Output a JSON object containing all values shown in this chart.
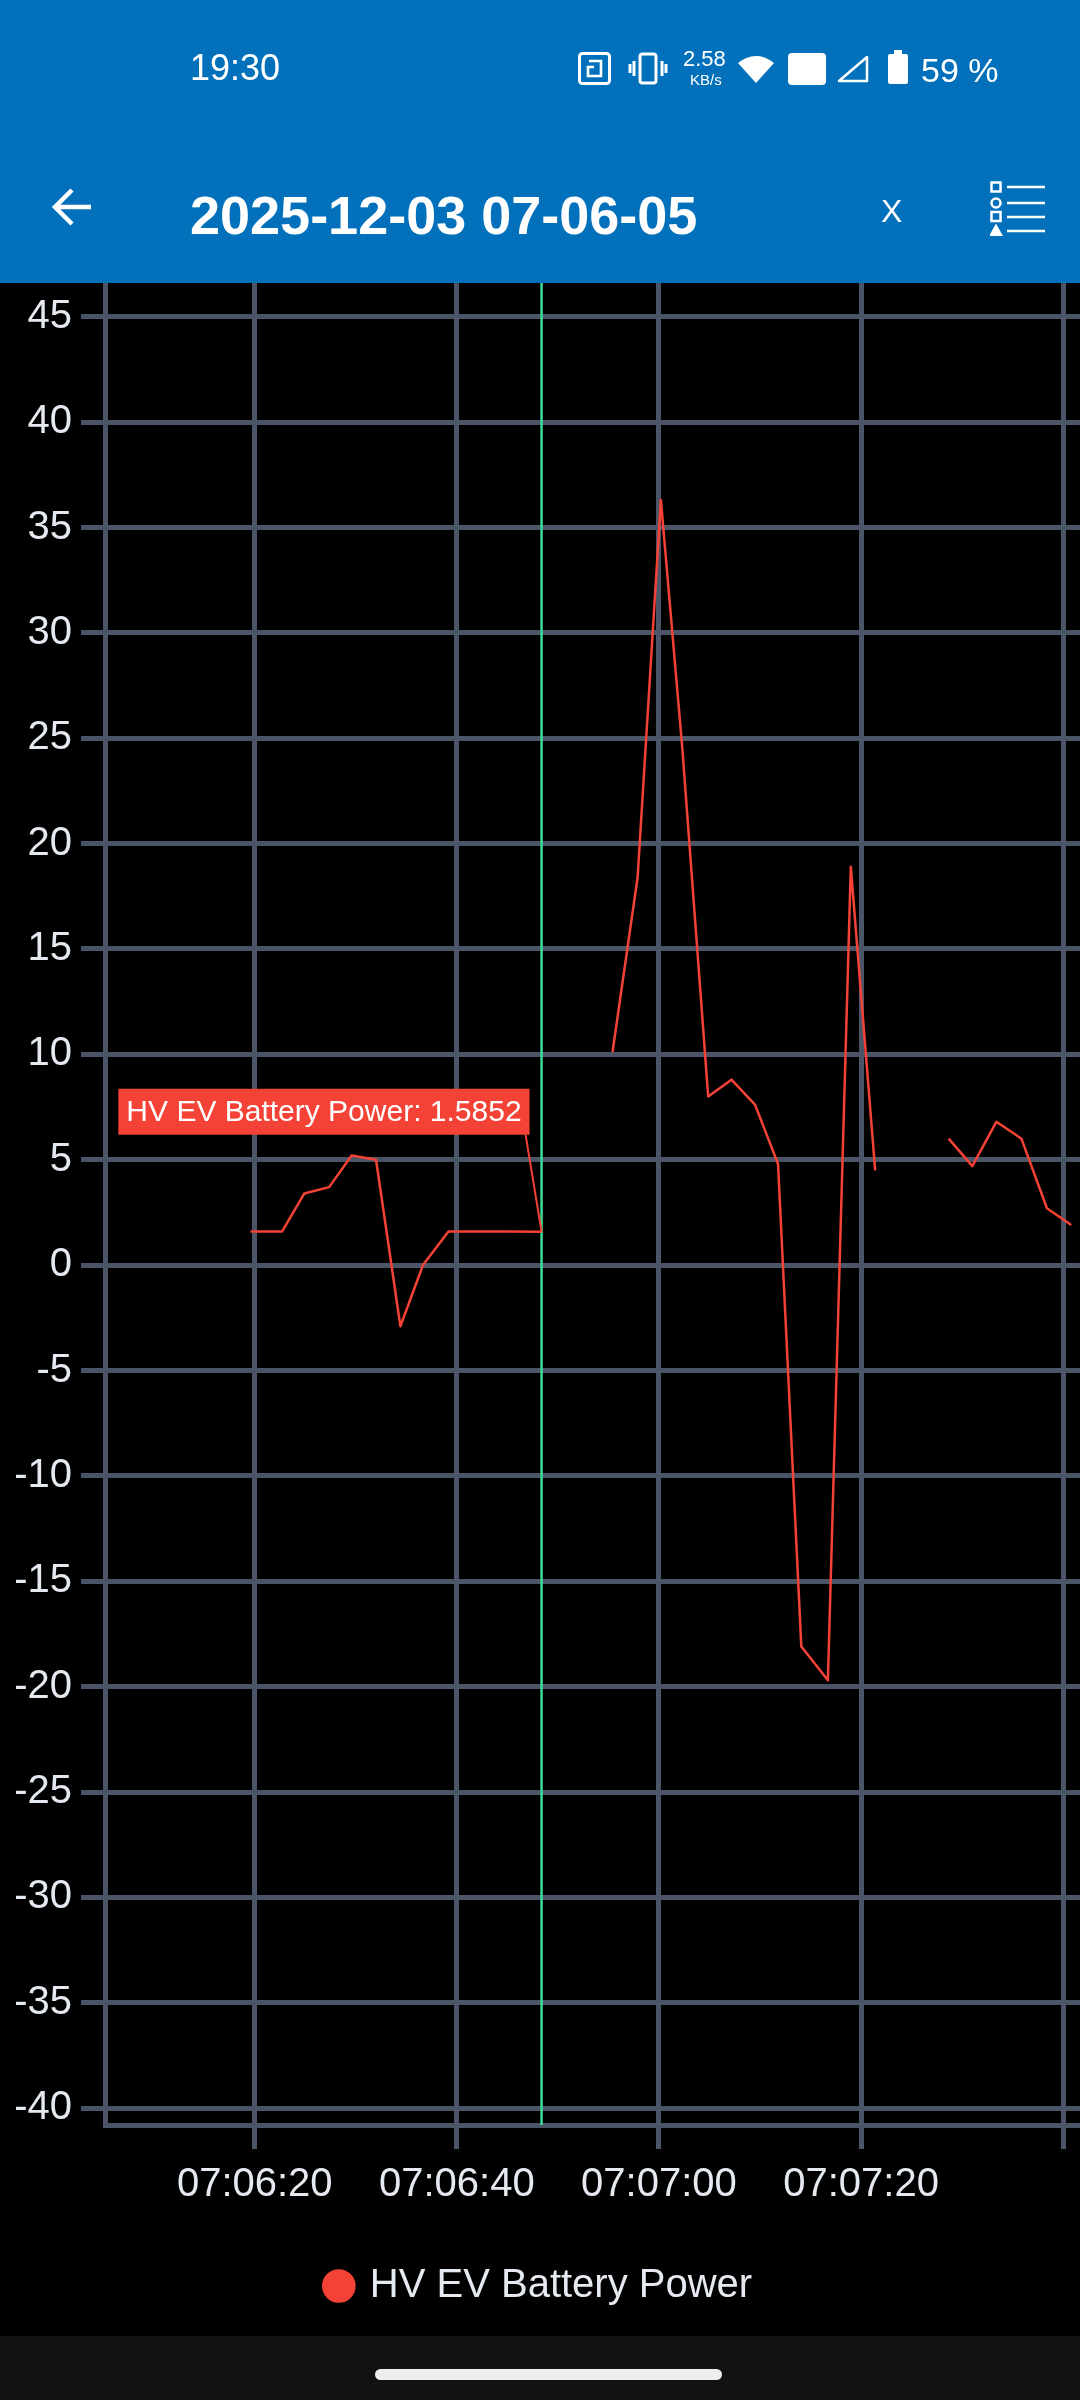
{
  "chart_data": {
    "type": "line",
    "title": "2025-12-03 07-06-05",
    "x": [
      7.10544,
      7.10631,
      7.10692,
      7.1076,
      7.10822,
      7.10889,
      7.10956,
      7.11018,
      7.11088,
      7.11344,
      7.11411,
      7.11475,
      7.11539,
      7.11608,
      7.11672,
      7.11731,
      7.11802,
      7.11866,
      7.11931,
      7.11994,
      7.12058,
      7.12131,
      7.12194,
      7.12261,
      7.12328,
      7.12394,
      7.12463,
      7.12528,
      7.12594,
      7.12663,
      7.12733,
      7.128
    ],
    "series": [
      {
        "name": "HV EV Battery Power",
        "color": "#f44336",
        "values": [
          1.6,
          1.6,
          3.4,
          3.7,
          5.2,
          5.0,
          -2.9,
          0,
          1.6,
          1.5852,
          null,
          null,
          10.1,
          18.4,
          36.3,
          24.5,
          8.0,
          8.8,
          7.6,
          4.8,
          -18.1,
          -19.7,
          18.9,
          4.5,
          null,
          null,
          6.0,
          4.7,
          6.8,
          6.0,
          2.7,
          1.9
        ]
      }
    ],
    "xlim": [
      7.10144,
      7.12824
    ],
    "xticks": [
      {
        "value": 7.105556,
        "label": "07:06:20"
      },
      {
        "value": 7.111111,
        "label": "07:06:40"
      },
      {
        "value": 7.116667,
        "label": "07:07:00"
      },
      {
        "value": 7.122222,
        "label": "07:07:20"
      },
      {
        "value": 7.127778,
        "label": null
      }
    ],
    "ylim": [
      -40.8,
      46.6
    ],
    "yticks": [
      -40,
      -35,
      -30,
      -25,
      -20,
      -15,
      -10,
      -5,
      0,
      5,
      10,
      15,
      20,
      25,
      30,
      35,
      40,
      45
    ],
    "grid": true,
    "legend": "bottom",
    "marker": "none",
    "ref_lines": [
      {
        "axis": "x",
        "value": 7.11344,
        "color": "#3ddc97"
      }
    ],
    "annotations": [
      "19:30",
      "2.58",
      "KB/s",
      "59 %",
      "X",
      {
        "text": "HV EV Battery Power: 1.5852",
        "x": 7.11344,
        "y": 1.5852
      }
    ]
  }
}
